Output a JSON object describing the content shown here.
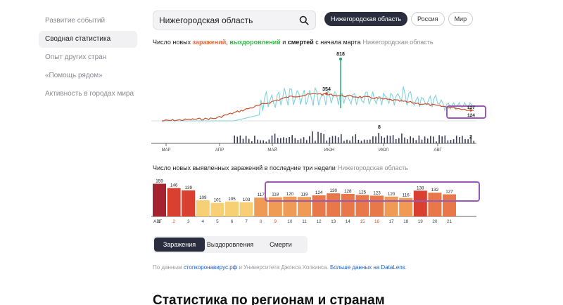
{
  "sidebar": {
    "items": [
      {
        "label": "Развитие событий",
        "active": false
      },
      {
        "label": "Сводная статистика",
        "active": true
      },
      {
        "label": "Опыт других стран",
        "active": false
      },
      {
        "label": "«Помощь рядом»",
        "active": false
      },
      {
        "label": "Активность в городах мира",
        "active": false
      }
    ]
  },
  "search": {
    "value": "Нижегородская область"
  },
  "region_pills": [
    "Нижегородская область",
    "Россия",
    "Мир"
  ],
  "chart1": {
    "title_prefix": "Число новых ",
    "title_inf": "заражений",
    "title_sep1": ", ",
    "title_rec": "выздоровлений",
    "title_sep2": " и ",
    "title_death": "смертей",
    "title_suffix": " с начала марта",
    "region": "Нижегородская область",
    "months": [
      "МАР",
      "АПР",
      "МАЙ",
      "ИЮН",
      "ИЮЛ",
      "АВГ"
    ],
    "annotations": {
      "peak_recovered": "818",
      "peak_infected": "354",
      "last_a": "127",
      "last_b": "124",
      "death_peak": "8",
      "death_last": "2"
    },
    "colors": {
      "infected": "#c9512c",
      "recovered": "#7fd3df",
      "recovered_peak": "#1aa56a",
      "deaths": "#3b3d55",
      "highlight": "#9b59b6"
    }
  },
  "chart2": {
    "title": "Число новых выявленных заражений в последние три недели",
    "region": "Нижегородская область",
    "month_label": "АВГ",
    "chart_data": {
      "type": "bar",
      "categories": [
        "1",
        "2",
        "3",
        "4",
        "5",
        "6",
        "7",
        "8",
        "9",
        "10",
        "11",
        "12",
        "13",
        "14",
        "15",
        "16",
        "17",
        "18",
        "19",
        "20",
        "21"
      ],
      "values": [
        159,
        146,
        139,
        109,
        101,
        105,
        103,
        117,
        118,
        120,
        119,
        124,
        130,
        128,
        125,
        123,
        120,
        116,
        138,
        132,
        127
      ],
      "weekend_days": [
        "2",
        "8",
        "9",
        "15",
        "16"
      ]
    }
  },
  "tabs": [
    {
      "label": "Заражения",
      "active": true
    },
    {
      "label": "Выздоровления",
      "active": false
    },
    {
      "label": "Смерти",
      "active": false
    }
  ],
  "source": {
    "prefix": "По данным ",
    "link1": "стопкоронавирус.рф",
    "middle": " и Университета Джонса Хопкинса. ",
    "link2": "Больше данных на DataLens",
    "suffix": "."
  },
  "section_title": "Статистика по регионам и странам"
}
